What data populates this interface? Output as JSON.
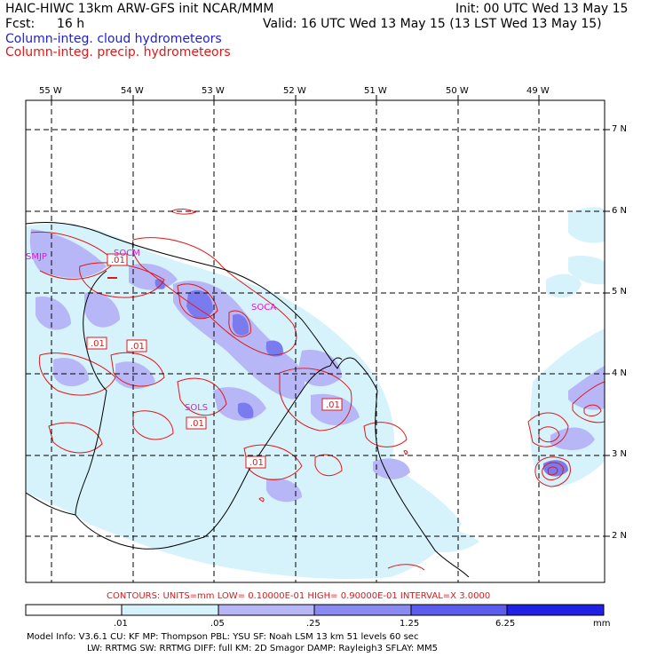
{
  "header": {
    "title": "HAIC-HIWC 13km ARW-GFS init   NCAR/MMM",
    "init": "Init: 00 UTC Wed 13 May 15",
    "fcst_label": "Fcst:",
    "fcst_value": "16 h",
    "valid": "Valid: 16 UTC Wed 13 May 15 (13 LST Wed 13 May 15)",
    "legend_cloud": "Column-integ. cloud hydrometeors",
    "legend_precip": "Column-integ. precip. hydrometeors"
  },
  "map": {
    "lon_labels": [
      "55 W",
      "54 W",
      "53 W",
      "52 W",
      "51 W",
      "50 W",
      "49 W"
    ],
    "lat_labels": [
      "7 N",
      "6 N",
      "5 N",
      "4 N",
      "3 N",
      "2 N"
    ],
    "station_labels": [
      "SMJP",
      "SOCA",
      "SOCM",
      "SOLS"
    ],
    "contour_labels": [
      ".01",
      ".01",
      ".01",
      ".01",
      ".01",
      ".01"
    ]
  },
  "contours_info": "CONTOURS:  UNITS=mm  LOW= 0.10000E-01  HIGH= 0.90000E-01  INTERVAL=X  3.0000",
  "colorbar": {
    "ticks": [
      ".01",
      ".05",
      ".25",
      "1.25",
      "6.25"
    ],
    "units": "mm",
    "colors": [
      "#ffffff",
      "#d6f2fb",
      "#b7b7f7",
      "#8a8af3",
      "#5c5cef",
      "#2020e6"
    ]
  },
  "model_info": {
    "line1": "Model Info: V3.6.1    CU: KF      MP: Thompson     PBL: YSU       SF: Noah LSM      13 km    51 levels   60 sec",
    "line2": "LW: RRTMG   SW: RRTMG  DIFF: full   KM: 2D Smagor DAMP: Rayleigh3  SFLAY: MM5"
  }
}
